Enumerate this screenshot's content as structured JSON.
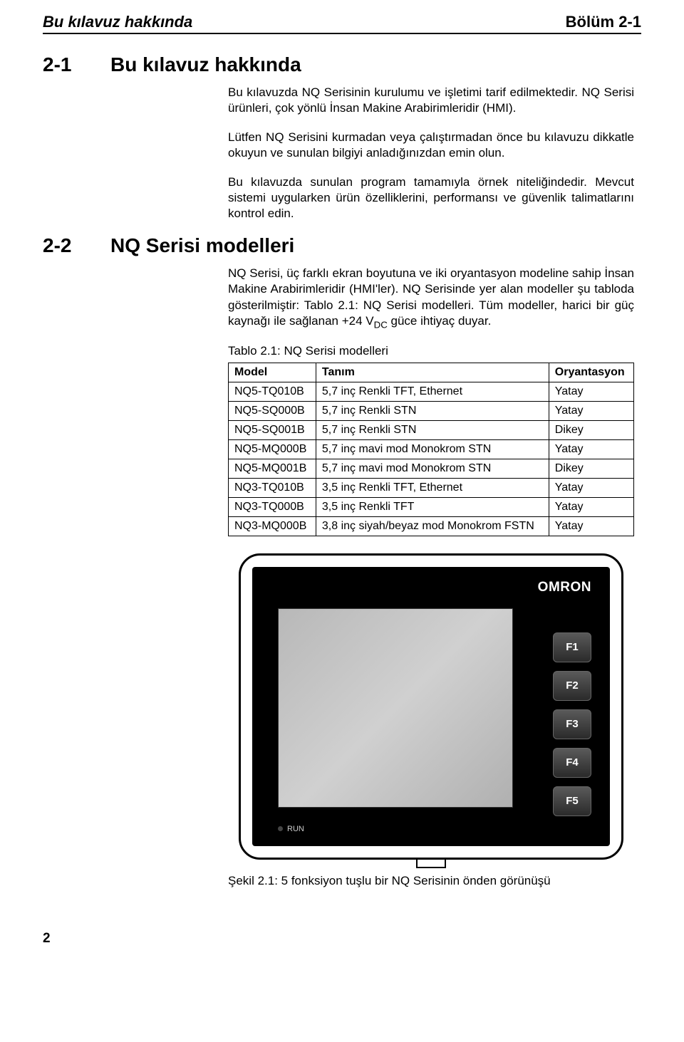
{
  "header": {
    "left": "Bu kılavuz hakkında",
    "right": "Bölüm 2-1"
  },
  "section1": {
    "num": "2-1",
    "title": "Bu kılavuz hakkında",
    "p1": "Bu kılavuzda NQ Serisinin kurulumu ve işletimi tarif edilmektedir. NQ Serisi ürünleri, çok yönlü İnsan Makine Arabirimleridir (HMI).",
    "p2": "Lütfen NQ Serisini kurmadan veya çalıştırmadan önce bu kılavuzu dikkatle okuyun ve sunulan bilgiyi anladığınızdan emin olun.",
    "p3": "Bu kılavuzda sunulan program tamamıyla örnek niteliğindedir. Mevcut sistemi uygularken ürün özelliklerini, performansı ve güvenlik talimatlarını kontrol edin."
  },
  "section2": {
    "num": "2-2",
    "title": "NQ Serisi modelleri",
    "p1a": "NQ Serisi, üç farklı ekran boyutuna ve iki oryantasyon modeline sahip İnsan Makine Arabirimleridir (HMI'ler). NQ Serisinde yer alan modeller şu tabloda gösterilmiştir: Tablo 2.1: NQ Serisi modelleri. Tüm modeller, harici bir güç kaynağı ile sağlanan +24 V",
    "p1sub": "DC",
    "p1b": " güce ihtiyaç duyar."
  },
  "table": {
    "caption": "Tablo 2.1: NQ Serisi modelleri",
    "columns": [
      "Model",
      "Tanım",
      "Oryantasyon"
    ],
    "rows": [
      [
        "NQ5-TQ010B",
        "5,7 inç Renkli TFT, Ethernet",
        "Yatay"
      ],
      [
        "NQ5-SQ000B",
        "5,7 inç Renkli STN",
        "Yatay"
      ],
      [
        "NQ5-SQ001B",
        "5,7 inç Renkli STN",
        "Dikey"
      ],
      [
        "NQ5-MQ000B",
        "5,7 inç mavi mod Monokrom STN",
        "Yatay"
      ],
      [
        "NQ5-MQ001B",
        "5,7 inç mavi mod Monokrom STN",
        "Dikey"
      ],
      [
        "NQ3-TQ010B",
        "3,5 inç Renkli TFT, Ethernet",
        "Yatay"
      ],
      [
        "NQ3-TQ000B",
        "3,5 inç Renkli TFT",
        "Yatay"
      ],
      [
        "NQ3-MQ000B",
        "3,8 inç siyah/beyaz mod Monokrom FSTN",
        "Yatay"
      ]
    ]
  },
  "device": {
    "brand": "OMRON",
    "fkeys": [
      "F1",
      "F2",
      "F3",
      "F4",
      "F5"
    ],
    "run": "RUN"
  },
  "figure": {
    "caption": "Şekil 2.1: 5 fonksiyon tuşlu bir NQ Serisinin önden görünüşü"
  },
  "pageNumber": "2"
}
